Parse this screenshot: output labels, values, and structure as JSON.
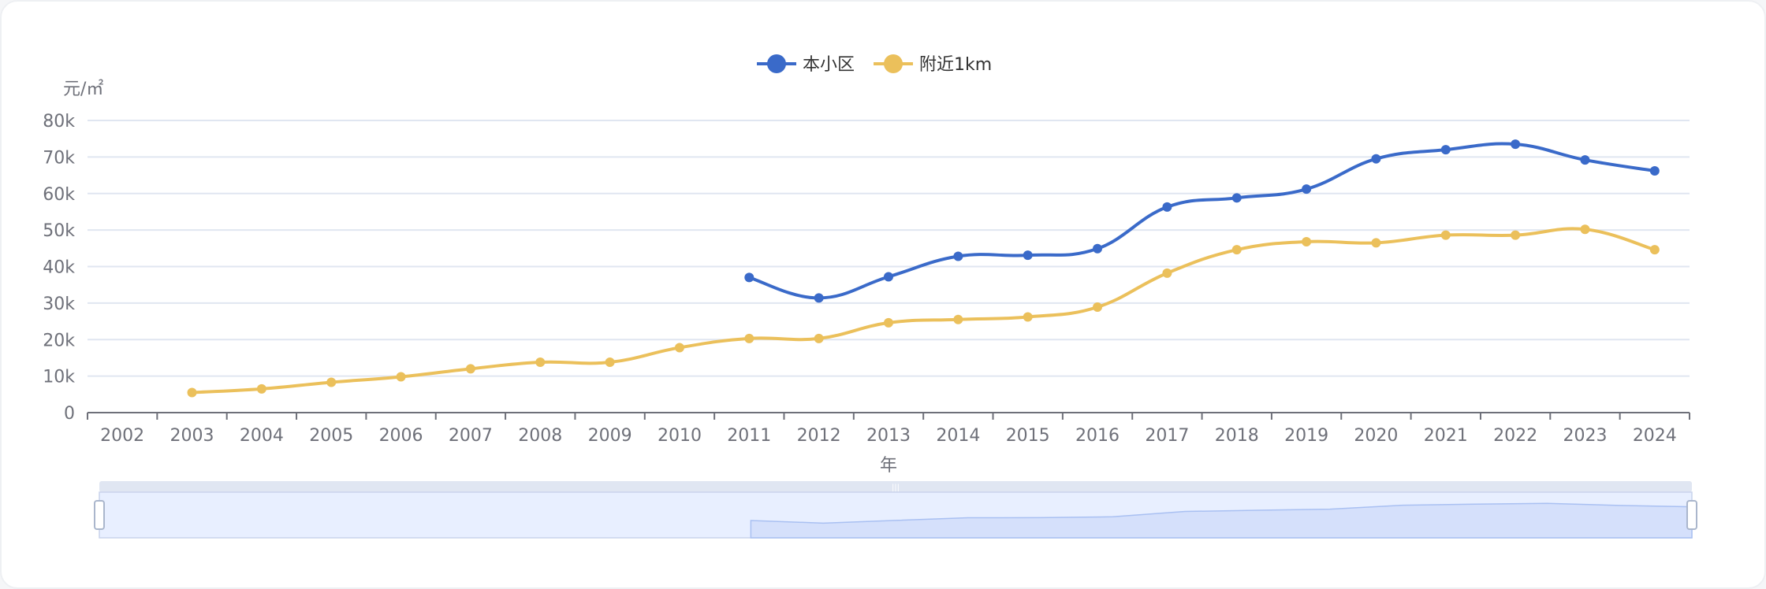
{
  "chart_data": {
    "type": "line",
    "title": "",
    "xlabel": "年",
    "ylabel": "元/㎡",
    "ylim": [
      0,
      80000
    ],
    "yticks": [
      0,
      10000,
      20000,
      30000,
      40000,
      50000,
      60000,
      70000,
      80000
    ],
    "ytick_labels": [
      "0",
      "10k",
      "20k",
      "30k",
      "40k",
      "50k",
      "60k",
      "70k",
      "80k"
    ],
    "categories": [
      "2002",
      "2003",
      "2004",
      "2005",
      "2006",
      "2007",
      "2008",
      "2009",
      "2010",
      "2011",
      "2012",
      "2013",
      "2014",
      "2015",
      "2016",
      "2017",
      "2018",
      "2019",
      "2020",
      "2021",
      "2022",
      "2023",
      "2024"
    ],
    "grid": true,
    "legend_position": "top-center",
    "smooth": true,
    "series": [
      {
        "name": "本小区",
        "color": "#3a6ac9",
        "values": [
          null,
          null,
          null,
          null,
          null,
          null,
          null,
          null,
          null,
          37000,
          31400,
          37200,
          42800,
          43100,
          44900,
          56300,
          58800,
          61200,
          69500,
          72000,
          73500,
          69200,
          66200
        ]
      },
      {
        "name": "附近1km",
        "color": "#ebc05b",
        "values": [
          null,
          5500,
          6500,
          8300,
          9800,
          12000,
          13800,
          13800,
          17800,
          20300,
          20300,
          24600,
          25500,
          26200,
          28900,
          38200,
          44600,
          46800,
          46500,
          48600,
          48600,
          50200,
          44600
        ]
      }
    ],
    "datazoom": {
      "start_percent": 0,
      "end_percent": 100,
      "handle_label": "|||"
    }
  }
}
